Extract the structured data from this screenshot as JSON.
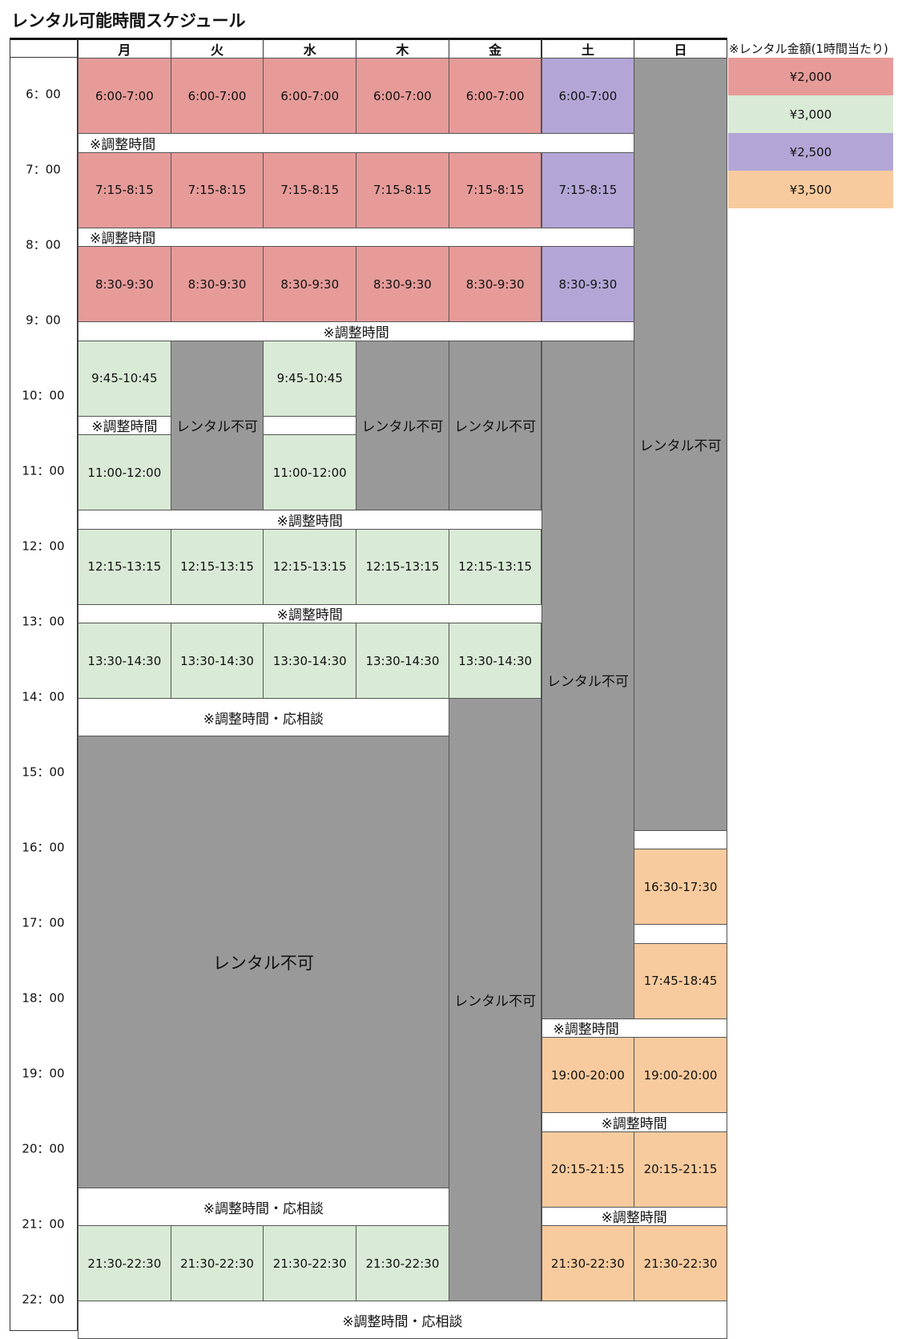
{
  "title": "レンタル可能時間スケジュール",
  "days": [
    "月",
    "火",
    "水",
    "木",
    "金",
    "土",
    "日"
  ],
  "times": [
    "6：00",
    "7：00",
    "8：00",
    "9：00",
    "10：00",
    "11：00",
    "12：00",
    "13：00",
    "14：00",
    "15：00",
    "16：00",
    "17：00",
    "18：00",
    "19：00",
    "20：00",
    "21：00",
    "22：00"
  ],
  "labels": {
    "adjust": "※調整時間",
    "adjust_consult": "※調整時間・応相談",
    "unavailable": "レンタル不可"
  },
  "price_legend": {
    "title": "※レンタル金額(1時間当たり)",
    "items": [
      {
        "price": "¥2,000",
        "color": "#e69b99"
      },
      {
        "price": "¥3,000",
        "color": "#d9ead6"
      },
      {
        "price": "¥2,500",
        "color": "#b3a6d6"
      },
      {
        "price": "¥3,500",
        "color": "#f8cb9e"
      }
    ]
  },
  "slots": [
    {
      "col": 0,
      "span": 1,
      "start": 6.0,
      "end": 7.0,
      "text": "6:00-7:00",
      "color": "red"
    },
    {
      "col": 1,
      "span": 1,
      "start": 6.0,
      "end": 7.0,
      "text": "6:00-7:00",
      "color": "red"
    },
    {
      "col": 2,
      "span": 1,
      "start": 6.0,
      "end": 7.0,
      "text": "6:00-7:00",
      "color": "red"
    },
    {
      "col": 3,
      "span": 1,
      "start": 6.0,
      "end": 7.0,
      "text": "6:00-7:00",
      "color": "red"
    },
    {
      "col": 4,
      "span": 1,
      "start": 6.0,
      "end": 7.0,
      "text": "6:00-7:00",
      "color": "red"
    },
    {
      "col": 5,
      "span": 1,
      "start": 6.0,
      "end": 7.0,
      "text": "6:00-7:00",
      "color": "purple"
    },
    {
      "col": 0,
      "span": 6,
      "start": 7.0,
      "end": 7.25,
      "text": "※調整時間",
      "color": "white",
      "align": "left"
    },
    {
      "col": 0,
      "span": 1,
      "start": 7.25,
      "end": 8.25,
      "text": "7:15-8:15",
      "color": "red"
    },
    {
      "col": 1,
      "span": 1,
      "start": 7.25,
      "end": 8.25,
      "text": "7:15-8:15",
      "color": "red"
    },
    {
      "col": 2,
      "span": 1,
      "start": 7.25,
      "end": 8.25,
      "text": "7:15-8:15",
      "color": "red"
    },
    {
      "col": 3,
      "span": 1,
      "start": 7.25,
      "end": 8.25,
      "text": "7:15-8:15",
      "color": "red"
    },
    {
      "col": 4,
      "span": 1,
      "start": 7.25,
      "end": 8.25,
      "text": "7:15-8:15",
      "color": "red"
    },
    {
      "col": 5,
      "span": 1,
      "start": 7.25,
      "end": 8.25,
      "text": "7:15-8:15",
      "color": "purple"
    },
    {
      "col": 0,
      "span": 6,
      "start": 8.25,
      "end": 8.5,
      "text": "※調整時間",
      "color": "white",
      "align": "left"
    },
    {
      "col": 0,
      "span": 1,
      "start": 8.5,
      "end": 9.5,
      "text": "8:30-9:30",
      "color": "red"
    },
    {
      "col": 1,
      "span": 1,
      "start": 8.5,
      "end": 9.5,
      "text": "8:30-9:30",
      "color": "red"
    },
    {
      "col": 2,
      "span": 1,
      "start": 8.5,
      "end": 9.5,
      "text": "8:30-9:30",
      "color": "red"
    },
    {
      "col": 3,
      "span": 1,
      "start": 8.5,
      "end": 9.5,
      "text": "8:30-9:30",
      "color": "red"
    },
    {
      "col": 4,
      "span": 1,
      "start": 8.5,
      "end": 9.5,
      "text": "8:30-9:30",
      "color": "red"
    },
    {
      "col": 5,
      "span": 1,
      "start": 8.5,
      "end": 9.5,
      "text": "8:30-9:30",
      "color": "purple"
    },
    {
      "col": 0,
      "span": 6,
      "start": 9.5,
      "end": 9.75,
      "text": "※調整時間",
      "color": "white"
    },
    {
      "col": 0,
      "span": 1,
      "start": 9.75,
      "end": 10.75,
      "text": "9:45-10:45",
      "color": "green"
    },
    {
      "col": 0,
      "span": 1,
      "start": 10.75,
      "end": 11.0,
      "text": "※調整時間",
      "color": "white"
    },
    {
      "col": 0,
      "span": 1,
      "start": 11.0,
      "end": 12.0,
      "text": "11:00-12:00",
      "color": "green"
    },
    {
      "col": 1,
      "span": 1,
      "start": 9.75,
      "end": 12.0,
      "text": "レンタル不可",
      "color": "gray"
    },
    {
      "col": 2,
      "span": 1,
      "start": 9.75,
      "end": 10.75,
      "text": "9:45-10:45",
      "color": "green"
    },
    {
      "col": 2,
      "span": 1,
      "start": 10.75,
      "end": 11.0,
      "text": "",
      "color": "white"
    },
    {
      "col": 2,
      "span": 1,
      "start": 11.0,
      "end": 12.0,
      "text": "11:00-12:00",
      "color": "green"
    },
    {
      "col": 3,
      "span": 1,
      "start": 9.75,
      "end": 12.0,
      "text": "レンタル不可",
      "color": "gray"
    },
    {
      "col": 4,
      "span": 1,
      "start": 9.75,
      "end": 12.0,
      "text": "レンタル不可",
      "color": "gray"
    },
    {
      "col": 5,
      "span": 1,
      "start": 9.75,
      "end": 18.75,
      "text": "レンタル不可",
      "color": "gray"
    },
    {
      "col": 6,
      "span": 1,
      "start": 6.0,
      "end": 16.25,
      "text": "レンタル不可",
      "color": "gray"
    },
    {
      "col": 0,
      "span": 5,
      "start": 12.0,
      "end": 12.25,
      "text": "※調整時間",
      "color": "white"
    },
    {
      "col": 0,
      "span": 1,
      "start": 12.25,
      "end": 13.25,
      "text": "12:15-13:15",
      "color": "green"
    },
    {
      "col": 1,
      "span": 1,
      "start": 12.25,
      "end": 13.25,
      "text": "12:15-13:15",
      "color": "green"
    },
    {
      "col": 2,
      "span": 1,
      "start": 12.25,
      "end": 13.25,
      "text": "12:15-13:15",
      "color": "green"
    },
    {
      "col": 3,
      "span": 1,
      "start": 12.25,
      "end": 13.25,
      "text": "12:15-13:15",
      "color": "green"
    },
    {
      "col": 4,
      "span": 1,
      "start": 12.25,
      "end": 13.25,
      "text": "12:15-13:15",
      "color": "green"
    },
    {
      "col": 0,
      "span": 5,
      "start": 13.25,
      "end": 13.5,
      "text": "※調整時間",
      "color": "white"
    },
    {
      "col": 0,
      "span": 1,
      "start": 13.5,
      "end": 14.5,
      "text": "13:30-14:30",
      "color": "green"
    },
    {
      "col": 1,
      "span": 1,
      "start": 13.5,
      "end": 14.5,
      "text": "13:30-14:30",
      "color": "green"
    },
    {
      "col": 2,
      "span": 1,
      "start": 13.5,
      "end": 14.5,
      "text": "13:30-14:30",
      "color": "green"
    },
    {
      "col": 3,
      "span": 1,
      "start": 13.5,
      "end": 14.5,
      "text": "13:30-14:30",
      "color": "green"
    },
    {
      "col": 4,
      "span": 1,
      "start": 13.5,
      "end": 14.5,
      "text": "13:30-14:30",
      "color": "green"
    },
    {
      "col": 0,
      "span": 4,
      "start": 14.5,
      "end": 15.0,
      "text": "※調整時間・応相談",
      "color": "white"
    },
    {
      "col": 0,
      "span": 4,
      "start": 15.0,
      "end": 21.0,
      "text": "レンタル不可",
      "color": "gray",
      "big": true
    },
    {
      "col": 4,
      "span": 1,
      "start": 14.5,
      "end": 22.5,
      "text": "レンタル不可",
      "color": "gray"
    },
    {
      "col": 6,
      "span": 1,
      "start": 16.25,
      "end": 16.5,
      "text": "",
      "color": "white"
    },
    {
      "col": 6,
      "span": 1,
      "start": 16.5,
      "end": 17.5,
      "text": "16:30-17:30",
      "color": "orange"
    },
    {
      "col": 6,
      "span": 1,
      "start": 17.5,
      "end": 17.75,
      "text": "",
      "color": "white"
    },
    {
      "col": 6,
      "span": 1,
      "start": 17.75,
      "end": 18.75,
      "text": "17:45-18:45",
      "color": "orange"
    },
    {
      "col": 5,
      "span": 2,
      "start": 18.75,
      "end": 19.0,
      "text": "※調整時間",
      "color": "white",
      "align": "left"
    },
    {
      "col": 5,
      "span": 1,
      "start": 19.0,
      "end": 20.0,
      "text": "19:00-20:00",
      "color": "orange"
    },
    {
      "col": 6,
      "span": 1,
      "start": 19.0,
      "end": 20.0,
      "text": "19:00-20:00",
      "color": "orange"
    },
    {
      "col": 5,
      "span": 2,
      "start": 20.0,
      "end": 20.25,
      "text": "※調整時間",
      "color": "white"
    },
    {
      "col": 5,
      "span": 1,
      "start": 20.25,
      "end": 21.25,
      "text": "20:15-21:15",
      "color": "orange"
    },
    {
      "col": 6,
      "span": 1,
      "start": 20.25,
      "end": 21.25,
      "text": "20:15-21:15",
      "color": "orange"
    },
    {
      "col": 0,
      "span": 4,
      "start": 21.0,
      "end": 21.5,
      "text": "※調整時間・応相談",
      "color": "white"
    },
    {
      "col": 5,
      "span": 2,
      "start": 21.25,
      "end": 21.5,
      "text": "※調整時間",
      "color": "white"
    },
    {
      "col": 0,
      "span": 1,
      "start": 21.5,
      "end": 22.5,
      "text": "21:30-22:30",
      "color": "green"
    },
    {
      "col": 1,
      "span": 1,
      "start": 21.5,
      "end": 22.5,
      "text": "21:30-22:30",
      "color": "green"
    },
    {
      "col": 2,
      "span": 1,
      "start": 21.5,
      "end": 22.5,
      "text": "21:30-22:30",
      "color": "green"
    },
    {
      "col": 3,
      "span": 1,
      "start": 21.5,
      "end": 22.5,
      "text": "21:30-22:30",
      "color": "green"
    },
    {
      "col": 5,
      "span": 1,
      "start": 21.5,
      "end": 22.5,
      "text": "21:30-22:30",
      "color": "orange"
    },
    {
      "col": 6,
      "span": 1,
      "start": 21.5,
      "end": 22.5,
      "text": "21:30-22:30",
      "color": "orange"
    },
    {
      "col": 0,
      "span": 7,
      "start": 22.5,
      "end": 23.0,
      "text": "※調整時間・応相談",
      "color": "white"
    }
  ]
}
